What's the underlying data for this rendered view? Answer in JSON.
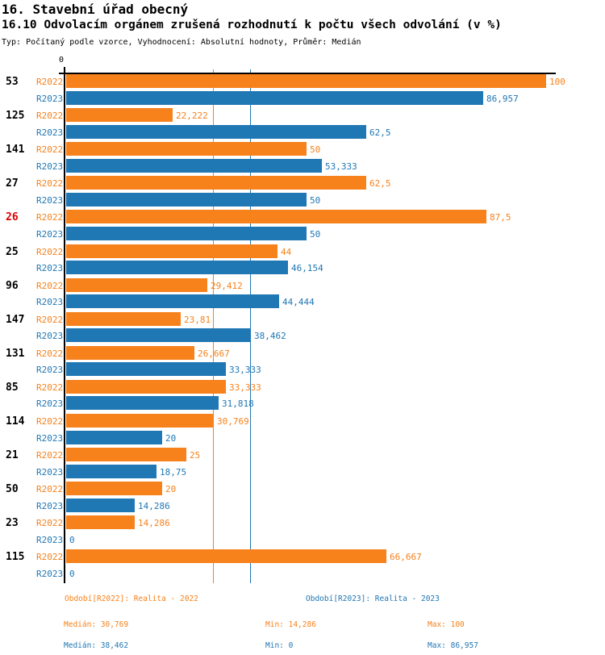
{
  "header": {
    "title": "16. Stavební úřad obecný",
    "subtitle": "16.10 Odvolacím orgánem zrušená rozhodnutí k počtu všech odvolání (v %)",
    "meta": "Typ: Počítaný podle vzorce, Vyhodnocení: Absolutní hodnoty, Průměr: Medián"
  },
  "colors": {
    "r2022": "#f7811b",
    "r2023": "#1f77b4",
    "highlight_category": "#dd0000",
    "axis": "#000000"
  },
  "chart_data": {
    "type": "bar",
    "orientation": "horizontal",
    "unit": "%",
    "x_axis": {
      "origin_tick_label": "0",
      "min": 0,
      "max": 100,
      "grid": false
    },
    "series_keys": [
      "R2022",
      "R2023"
    ],
    "groups": [
      {
        "category": "53",
        "highlighted": false,
        "values": [
          100,
          86.957
        ],
        "labels": [
          "100",
          "86,957"
        ]
      },
      {
        "category": "125",
        "highlighted": false,
        "values": [
          22.222,
          62.5
        ],
        "labels": [
          "22,222",
          "62,5"
        ]
      },
      {
        "category": "141",
        "highlighted": false,
        "values": [
          50,
          53.333
        ],
        "labels": [
          "50",
          "53,333"
        ]
      },
      {
        "category": "27",
        "highlighted": false,
        "values": [
          62.5,
          50
        ],
        "labels": [
          "62,5",
          "50"
        ]
      },
      {
        "category": "26",
        "highlighted": true,
        "values": [
          87.5,
          50
        ],
        "labels": [
          "87,5",
          "50"
        ]
      },
      {
        "category": "25",
        "highlighted": false,
        "values": [
          44,
          46.154
        ],
        "labels": [
          "44",
          "46,154"
        ]
      },
      {
        "category": "96",
        "highlighted": false,
        "values": [
          29.412,
          44.444
        ],
        "labels": [
          "29,412",
          "44,444"
        ]
      },
      {
        "category": "147",
        "highlighted": false,
        "values": [
          23.81,
          38.462
        ],
        "labels": [
          "23,81",
          "38,462"
        ]
      },
      {
        "category": "131",
        "highlighted": false,
        "values": [
          26.667,
          33.333
        ],
        "labels": [
          "26,667",
          "33,333"
        ]
      },
      {
        "category": "85",
        "highlighted": false,
        "values": [
          33.333,
          31.818
        ],
        "labels": [
          "33,333",
          "31,818"
        ]
      },
      {
        "category": "114",
        "highlighted": false,
        "values": [
          30.769,
          20
        ],
        "labels": [
          "30,769",
          "20"
        ]
      },
      {
        "category": "21",
        "highlighted": false,
        "values": [
          25,
          18.75
        ],
        "labels": [
          "25",
          "18,75"
        ]
      },
      {
        "category": "50",
        "highlighted": false,
        "values": [
          20,
          14.286
        ],
        "labels": [
          "20",
          "14,286"
        ]
      },
      {
        "category": "23",
        "highlighted": false,
        "values": [
          14.286,
          0
        ],
        "labels": [
          "14,286",
          "0"
        ]
      },
      {
        "category": "115",
        "highlighted": false,
        "values": [
          66.667,
          0
        ],
        "labels": [
          "66,667",
          "0"
        ]
      }
    ],
    "median_lines": [
      {
        "series": "R2022",
        "value": 30.769
      },
      {
        "series": "R2023",
        "value": 38.462
      }
    ],
    "legend_position": "bottom"
  },
  "legend": {
    "r2022": "Období[R2022]: Realita - 2022",
    "r2023": "Období[R2023]: Realita - 2023"
  },
  "stats": {
    "r2022": {
      "median": "Medián: 30,769",
      "min": "Min: 14,286",
      "max": "Max: 100"
    },
    "r2023": {
      "median": "Medián: 38,462",
      "min": "Min: 0",
      "max": "Max: 86,957"
    }
  }
}
